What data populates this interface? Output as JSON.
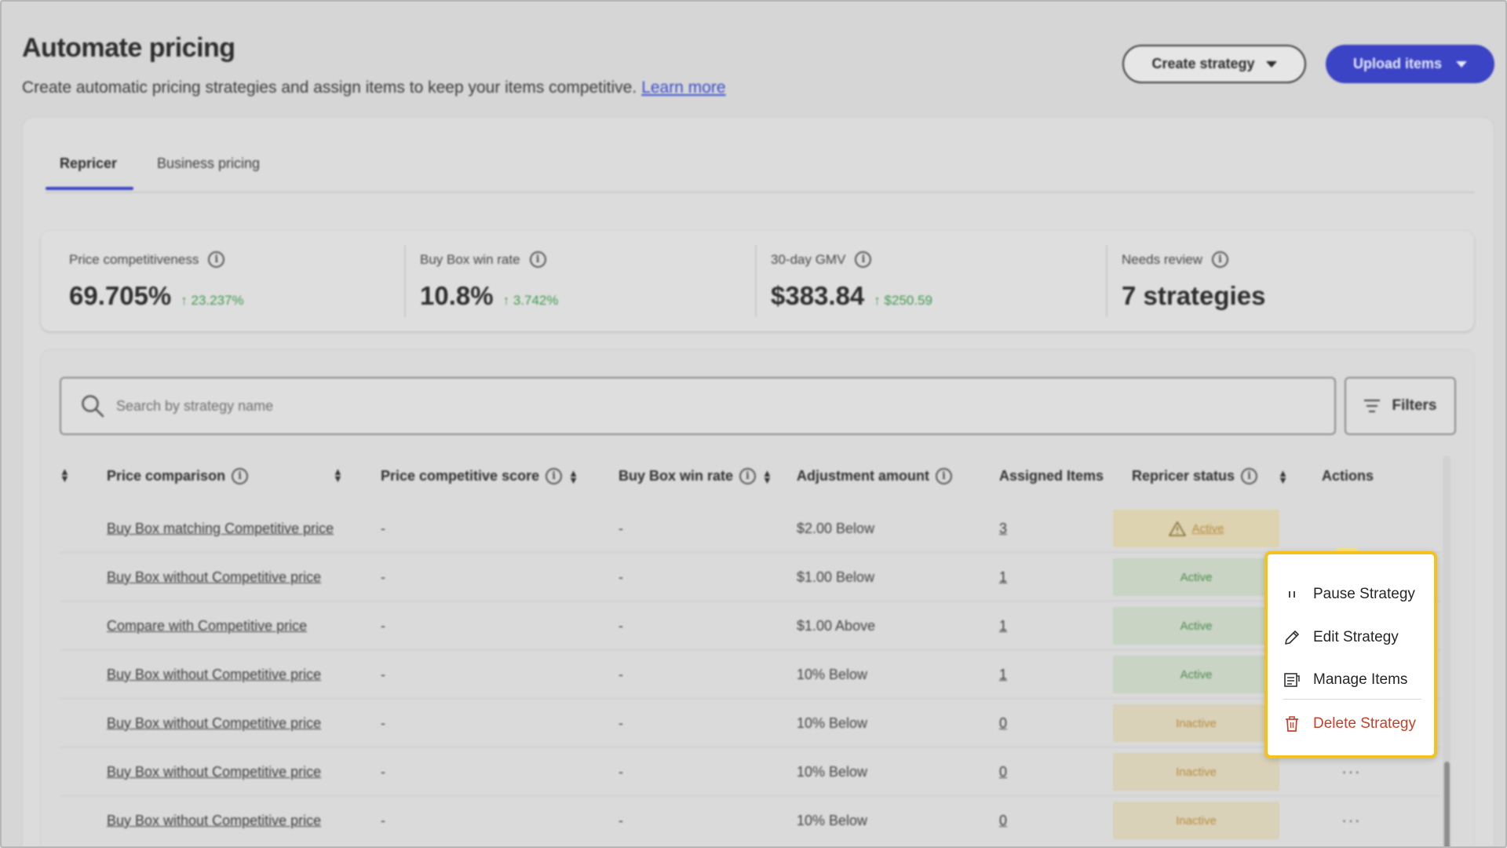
{
  "header": {
    "title": "Automate pricing",
    "subtitle": "Create automatic pricing strategies and assign items to keep your items competitive.",
    "learn_more": "Learn more",
    "create_strategy": "Create strategy",
    "upload_items": "Upload items"
  },
  "tabs": [
    {
      "label": "Repricer",
      "active": true
    },
    {
      "label": "Business pricing",
      "active": false
    }
  ],
  "metrics": [
    {
      "label": "Price competitiveness",
      "value": "69.705%",
      "delta": "23.237%"
    },
    {
      "label": "Buy Box win rate",
      "value": "10.8%",
      "delta": "3.742%"
    },
    {
      "label": "30-day GMV",
      "value": "$383.84",
      "delta": "$250.59"
    },
    {
      "label": "Needs review",
      "value": "7 strategies",
      "delta": ""
    }
  ],
  "search": {
    "placeholder": "Search by strategy name"
  },
  "filters_label": "Filters",
  "columns": {
    "price_comparison": "Price comparison",
    "price_competitive_score": "Price competitive score",
    "buy_box_win_rate": "Buy Box win rate",
    "adjustment_amount": "Adjustment amount",
    "assigned_items": "Assigned Items",
    "repricer_status": "Repricer status",
    "actions": "Actions"
  },
  "rows": [
    {
      "comparison": "Buy Box matching Competitive price",
      "score": "-",
      "winrate": "-",
      "adjustment": "$2.00 Below",
      "assigned": "3",
      "status": "Active",
      "status_type": "warn"
    },
    {
      "comparison": "Buy Box without Competitive price",
      "score": "-",
      "winrate": "-",
      "adjustment": "$1.00 Below",
      "assigned": "1",
      "status": "Active",
      "status_type": "active"
    },
    {
      "comparison": "Compare with Competitive price",
      "score": "-",
      "winrate": "-",
      "adjustment": "$1.00 Above",
      "assigned": "1",
      "status": "Active",
      "status_type": "active"
    },
    {
      "comparison": "Buy Box without Competitive price",
      "score": "-",
      "winrate": "-",
      "adjustment": "10% Below",
      "assigned": "1",
      "status": "Active",
      "status_type": "active"
    },
    {
      "comparison": "Buy Box without Competitive price",
      "score": "-",
      "winrate": "-",
      "adjustment": "10% Below",
      "assigned": "0",
      "status": "Inactive",
      "status_type": "inactive"
    },
    {
      "comparison": "Buy Box without Competitive price",
      "score": "-",
      "winrate": "-",
      "adjustment": "10% Below",
      "assigned": "0",
      "status": "Inactive",
      "status_type": "inactive"
    },
    {
      "comparison": "Buy Box without Competitive price",
      "score": "-",
      "winrate": "-",
      "adjustment": "10% Below",
      "assigned": "0",
      "status": "Inactive",
      "status_type": "inactive"
    }
  ],
  "actions_menu": {
    "pause": "Pause Strategy",
    "edit": "Edit Strategy",
    "manage": "Manage Items",
    "delete": "Delete Strategy"
  },
  "colors": {
    "accent": "#3a44c4",
    "positive": "#3f9a4e",
    "danger": "#c8402b",
    "highlight": "#f5c21b"
  },
  "icons": {
    "info": "info-icon",
    "search": "search-icon",
    "filters": "filter-icon",
    "pause": "pause-icon",
    "edit": "pencil-icon",
    "manage": "list-icon",
    "delete": "trash-icon",
    "warning": "warning-icon"
  }
}
